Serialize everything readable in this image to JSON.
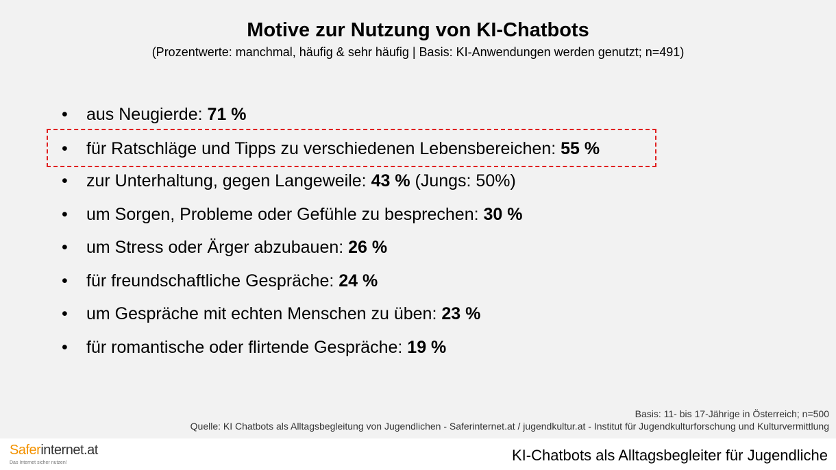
{
  "header": {
    "title": "Motive zur Nutzung von KI-Chatbots",
    "subtitle": "(Prozentwerte: manchmal, häufig & sehr häufig | Basis: KI-Anwendungen werden genutzt; n=491)"
  },
  "items": [
    {
      "text": "aus Neugierde: ",
      "value": "71 %"
    },
    {
      "text": "für Ratschläge und Tipps zu verschiedenen Lebensbereichen: ",
      "value": "55 %",
      "highlighted": true
    },
    {
      "text": "zur Unterhaltung, gegen Langeweile: ",
      "value": "43 %",
      "note": " (Jungs: 50%)"
    },
    {
      "text": "um Sorgen, Probleme oder Gefühle zu besprechen: ",
      "value": "30 %"
    },
    {
      "text": "um Stress oder Ärger abzubauen: ",
      "value": "26 %"
    },
    {
      "text": "für freundschaftliche Gespräche: ",
      "value": "24 %"
    },
    {
      "text": "um Gespräche mit echten Menschen zu üben: ",
      "value": "23 %"
    },
    {
      "text": "für romantische oder flirtende Gespräche: ",
      "value": "19 %"
    }
  ],
  "footer": {
    "basis": "Basis: 11- bis 17-Jährige in Österreich; n=500",
    "source": "Quelle: KI Chatbots als Alltagsbegleitung von Jugendlichen - Saferinternet.at / jugendkultur.at - Institut für Jugendkulturforschung und Kulturvermittlung",
    "logo_prefix": "Safer",
    "logo_suffix": "internet.at",
    "logo_tagline": "Das Internet sicher nutzen!",
    "slide_title": "KI-Chatbots als Alltagsbegleiter für Jugendliche"
  }
}
